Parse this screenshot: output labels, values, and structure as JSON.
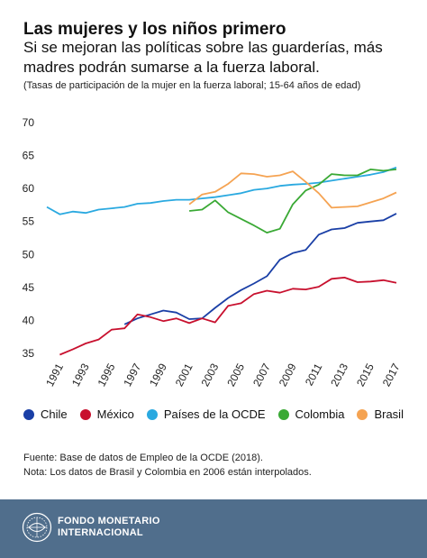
{
  "header": {
    "title": "Las mujeres y los niños primero",
    "subtitle": "Si se mejoran las políticas sobre las guarderías, más madres podrán sumarse a la fuerza laboral.",
    "note": "(Tasas de participación de la mujer en la fuerza laboral; 15-64 años de edad)"
  },
  "chart_data": {
    "type": "line",
    "ylim": [
      35,
      70
    ],
    "yticks": [
      "35",
      "40",
      "45",
      "50",
      "55",
      "60",
      "65",
      "70"
    ],
    "xlim": [
      1990,
      2017
    ],
    "xticks": [
      "1991",
      "1993",
      "1995",
      "1997",
      "1999",
      "2001",
      "2003",
      "2005",
      "2007",
      "2009",
      "2011",
      "2013",
      "2015",
      "2017"
    ],
    "grid": false,
    "legend_position": "bottom",
    "series": [
      {
        "name": "Chile",
        "color": "#1a3fa6",
        "x": [
          1996,
          1997,
          1998,
          1999,
          2000,
          2001,
          2002,
          2003,
          2004,
          2005,
          2006,
          2007,
          2008,
          2009,
          2010,
          2011,
          2012,
          2013,
          2014,
          2015,
          2016,
          2017
        ],
        "y": [
          39.4,
          40.3,
          40.9,
          41.5,
          41.2,
          40.2,
          40.3,
          41.9,
          43.4,
          44.6,
          45.6,
          46.7,
          49.2,
          50.2,
          50.7,
          53.0,
          53.8,
          54.0,
          54.8,
          55.0,
          55.2,
          56.2
        ]
      },
      {
        "name": "México",
        "color": "#c8102e",
        "x": [
          1991,
          1992,
          1993,
          1994,
          1995,
          1996,
          1997,
          1998,
          1999,
          2000,
          2001,
          2002,
          2003,
          2004,
          2005,
          2006,
          2007,
          2008,
          2009,
          2010,
          2011,
          2012,
          2013,
          2014,
          2015,
          2016,
          2017
        ],
        "y": [
          34.8,
          35.6,
          36.5,
          37.1,
          38.6,
          38.8,
          40.9,
          40.5,
          39.9,
          40.3,
          39.6,
          40.3,
          39.7,
          42.2,
          42.6,
          44.0,
          44.5,
          44.2,
          44.8,
          44.7,
          45.1,
          46.3,
          46.5,
          45.8,
          45.9,
          46.1,
          45.7
        ]
      },
      {
        "name": "Países de la OCDE",
        "color": "#2aa9e0",
        "x": [
          1990,
          1991,
          1992,
          1993,
          1994,
          1995,
          1996,
          1997,
          1998,
          1999,
          2000,
          2001,
          2002,
          2003,
          2004,
          2005,
          2006,
          2007,
          2008,
          2009,
          2010,
          2011,
          2012,
          2013,
          2014,
          2015,
          2016,
          2017
        ],
        "y": [
          57.2,
          56.1,
          56.5,
          56.3,
          56.8,
          57.0,
          57.2,
          57.7,
          57.8,
          58.1,
          58.3,
          58.3,
          58.5,
          58.7,
          59.0,
          59.3,
          59.8,
          60.0,
          60.4,
          60.6,
          60.7,
          60.9,
          61.2,
          61.5,
          61.8,
          62.1,
          62.5,
          63.2
        ]
      },
      {
        "name": "Colombia",
        "color": "#3aa935",
        "x": [
          2001,
          2002,
          2003,
          2004,
          2005,
          2006,
          2007,
          2008,
          2009,
          2010,
          2011,
          2012,
          2013,
          2014,
          2015,
          2016,
          2017
        ],
        "y": [
          56.6,
          56.8,
          58.2,
          56.4,
          55.4,
          54.4,
          53.3,
          53.9,
          57.6,
          59.7,
          60.6,
          62.2,
          62.0,
          62.0,
          62.9,
          62.7,
          62.9
        ]
      },
      {
        "name": "Brasil",
        "color": "#f5a352",
        "x": [
          2001,
          2002,
          2003,
          2004,
          2005,
          2006,
          2007,
          2008,
          2009,
          2010,
          2011,
          2012,
          2013,
          2014,
          2015,
          2016,
          2017
        ],
        "y": [
          57.6,
          59.1,
          59.5,
          60.7,
          62.3,
          62.2,
          61.8,
          62.0,
          62.6,
          61.0,
          59.3,
          57.1,
          57.2,
          57.3,
          57.9,
          58.5,
          59.4
        ]
      }
    ]
  },
  "footer": {
    "source": "Fuente: Base de datos de Empleo de la OCDE (2018).",
    "nota": "Nota: Los datos de Brasil y Colombia en 2006 están interpolados.",
    "org_line1": "FONDO MONETARIO",
    "org_line2": "INTERNACIONAL",
    "bg_color": "#506e8c"
  }
}
